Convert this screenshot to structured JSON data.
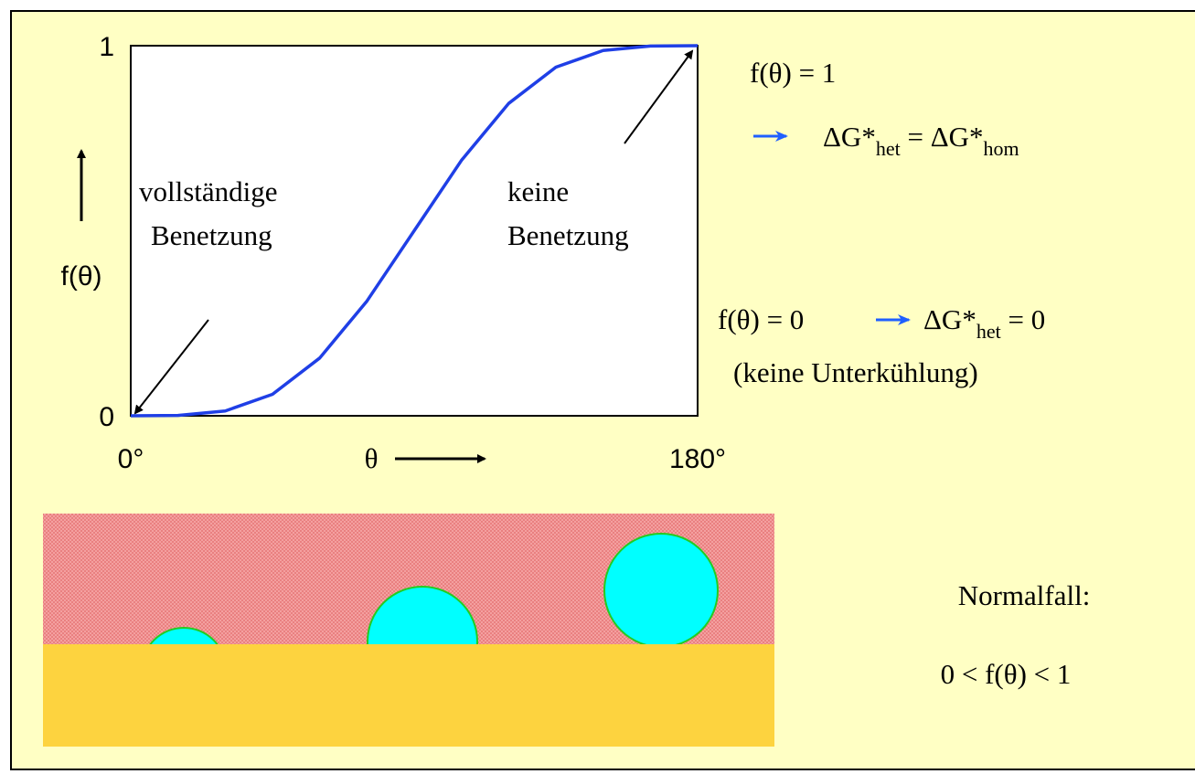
{
  "chart_data": {
    "type": "line",
    "x": [
      0,
      15,
      30,
      45,
      60,
      75,
      90,
      105,
      120,
      135,
      150,
      165,
      180
    ],
    "values": [
      0,
      0.001,
      0.013,
      0.058,
      0.156,
      0.31,
      0.5,
      0.69,
      0.844,
      0.942,
      0.987,
      0.999,
      1
    ],
    "color": "#1f3fe6",
    "xlim": [
      0,
      180
    ],
    "ylim": [
      0,
      1
    ],
    "xticks": [
      {
        "value": 0,
        "label": "0°"
      },
      {
        "value": 180,
        "label": "180°"
      }
    ],
    "yticks": [
      0,
      1
    ],
    "grid": false,
    "x_label": "θ",
    "y_label": "f(θ)",
    "annotations": {
      "left": [
        "vollständige",
        "Benetzung"
      ],
      "right": [
        "keine",
        "Benetzung"
      ]
    }
  },
  "notes": {
    "case1": "f(θ) = 1",
    "case1_result": [
      "ΔG*",
      "het",
      " = ΔG*",
      "hom"
    ],
    "case0": "f(θ) = 0",
    "case0_result": [
      "ΔG*",
      "het",
      " = 0"
    ],
    "case0_note": "(keine Unterkühlung)",
    "normal": "Normalfall:",
    "normal_range": "0 < f(θ) < 1"
  }
}
